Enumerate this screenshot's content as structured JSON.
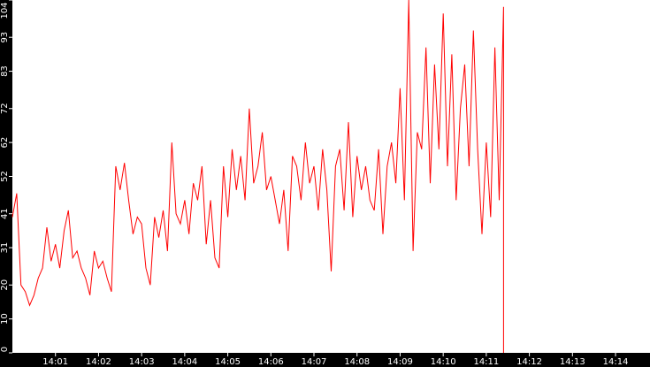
{
  "chart_data": {
    "type": "line",
    "title": "",
    "xlabel": "",
    "ylabel": "",
    "ylim": [
      0,
      104
    ],
    "y_ticks": [
      "0",
      "10",
      "20",
      "31",
      "41",
      "52",
      "62",
      "72",
      "83",
      "93",
      "104"
    ],
    "x_tick_labels": [
      "14:01",
      "14:02",
      "14:03",
      "14:04",
      "14:05",
      "14:06",
      "14:07",
      "14:08",
      "14:09",
      "14:10",
      "14:11",
      "14:12",
      "14:13",
      "14:14"
    ],
    "x_domain_minutes": [
      "14:00:00",
      "14:14:48"
    ],
    "grid": false,
    "legend": "none",
    "colors": {
      "background": "#000000",
      "plot_area": "#ffffff",
      "line": "#ff0000",
      "text": "#ffffff"
    },
    "series": [
      {
        "x": [
          "14:00:00",
          "14:00:06",
          "14:00:12",
          "14:00:18",
          "14:00:24",
          "14:00:30",
          "14:00:36",
          "14:00:42",
          "14:00:48",
          "14:00:54",
          "14:01:00",
          "14:01:06",
          "14:01:12",
          "14:01:18",
          "14:01:24",
          "14:01:30",
          "14:01:36",
          "14:01:42",
          "14:01:48",
          "14:01:54",
          "14:02:00",
          "14:02:06",
          "14:02:12",
          "14:02:18",
          "14:02:24",
          "14:02:30",
          "14:02:36",
          "14:02:42",
          "14:02:48",
          "14:02:54",
          "14:03:00",
          "14:03:06",
          "14:03:12",
          "14:03:18",
          "14:03:24",
          "14:03:30",
          "14:03:36",
          "14:03:42",
          "14:03:48",
          "14:03:54",
          "14:04:00",
          "14:04:06",
          "14:04:12",
          "14:04:18",
          "14:04:24",
          "14:04:30",
          "14:04:36",
          "14:04:42",
          "14:04:48",
          "14:04:54",
          "14:05:00",
          "14:05:06",
          "14:05:12",
          "14:05:18",
          "14:05:24",
          "14:05:30",
          "14:05:36",
          "14:05:42",
          "14:05:48",
          "14:05:54",
          "14:06:00",
          "14:06:06",
          "14:06:12",
          "14:06:18",
          "14:06:24",
          "14:06:30",
          "14:06:36",
          "14:06:42",
          "14:06:48",
          "14:06:54",
          "14:07:00",
          "14:07:06",
          "14:07:12",
          "14:07:18",
          "14:07:24",
          "14:07:30",
          "14:07:36",
          "14:07:42",
          "14:07:48",
          "14:07:54",
          "14:08:00",
          "14:08:06",
          "14:08:12",
          "14:08:18",
          "14:08:24",
          "14:08:30",
          "14:08:36",
          "14:08:42",
          "14:08:48",
          "14:08:54",
          "14:09:00",
          "14:09:06",
          "14:09:12",
          "14:09:18",
          "14:09:24",
          "14:09:30",
          "14:09:36",
          "14:09:42",
          "14:09:48",
          "14:09:54",
          "14:10:00",
          "14:10:06",
          "14:10:12",
          "14:10:18",
          "14:10:24",
          "14:10:30",
          "14:10:36",
          "14:10:42",
          "14:10:48",
          "14:10:54",
          "14:11:00",
          "14:11:06",
          "14:11:12",
          "14:11:18",
          "14:11:24"
        ],
        "y": [
          40,
          47,
          20,
          18,
          14,
          17,
          22,
          25,
          37,
          27,
          32,
          25,
          36,
          42,
          28,
          30,
          25,
          22,
          17,
          30,
          25,
          27,
          22,
          18,
          55,
          48,
          56,
          45,
          35,
          40,
          38,
          25,
          20,
          40,
          34,
          42,
          30,
          62,
          41,
          38,
          45,
          35,
          50,
          45,
          55,
          32,
          45,
          28,
          25,
          55,
          40,
          60,
          48,
          58,
          45,
          72,
          50,
          55,
          65,
          48,
          52,
          45,
          38,
          48,
          30,
          58,
          55,
          45,
          62,
          50,
          55,
          42,
          60,
          48,
          24,
          55,
          60,
          42,
          68,
          40,
          58,
          48,
          55,
          45,
          42,
          60,
          35,
          55,
          62,
          50,
          78,
          45,
          104,
          30,
          65,
          60,
          90,
          50,
          85,
          60,
          100,
          55,
          88,
          45,
          72,
          85,
          55,
          95,
          60,
          35,
          62,
          40,
          90,
          45,
          102
        ]
      }
    ]
  }
}
